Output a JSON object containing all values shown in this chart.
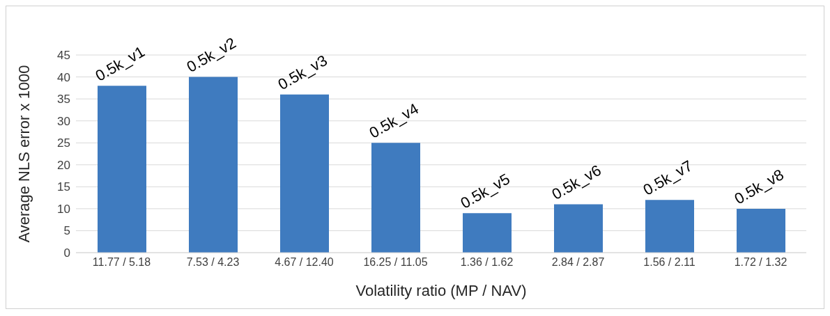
{
  "chart_data": {
    "type": "bar",
    "xlabel": "Volatility ratio (MP / NAV)",
    "ylabel": "Average NLS error x 1000",
    "categories": [
      "11.77 / 5.18",
      "7.53 / 4.23",
      "4.67 / 12.40",
      "16.25 / 11.05",
      "1.36 / 1.62",
      "2.84 / 2.87",
      "1.56 / 2.11",
      "1.72 / 1.32"
    ],
    "values": [
      38,
      40,
      36,
      25,
      9,
      11,
      12,
      10
    ],
    "color": "#3f7bbf",
    "ylim": [
      0,
      45
    ],
    "yticks": [
      0,
      5,
      10,
      15,
      20,
      25,
      30,
      35,
      40,
      45
    ],
    "grid": "y",
    "legend": false,
    "annotations": [
      {
        "text": "0.5k_v1",
        "x": "11.77 / 5.18",
        "y": 38
      },
      {
        "text": "0.5k_v2",
        "x": "7.53 / 4.23",
        "y": 40
      },
      {
        "text": "0.5k_v3",
        "x": "4.67 / 12.40",
        "y": 36
      },
      {
        "text": "0.5k_v4",
        "x": "16.25 / 11.05",
        "y": 25
      },
      {
        "text": "0.5k_v5",
        "x": "1.36 / 1.62",
        "y": 9
      },
      {
        "text": "0.5k_v6",
        "x": "2.84 / 2.87",
        "y": 11
      },
      {
        "text": "0.5k_v7",
        "x": "1.56 / 2.11",
        "y": 12
      },
      {
        "text": "0.5k_v8",
        "x": "1.72 / 1.32",
        "y": 10
      }
    ]
  }
}
